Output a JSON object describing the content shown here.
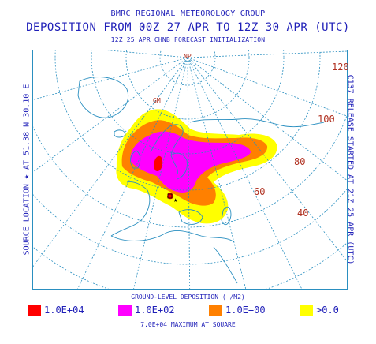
{
  "header": {
    "org": "BMRC REGIONAL METEOROLOGY GROUP",
    "title": "DEPOSITION FROM 00Z 27 APR TO 12Z 30 APR (UTC)",
    "subtitle": "12Z 25 APR CHNB FORECAST INITIALIZATION"
  },
  "side_labels": {
    "left": "SOURCE LOCATION ★ AT 51.38 N 30.10 E",
    "right": "C137 RELEASE STARTED AT 21Z 25 APR (UTC)"
  },
  "map": {
    "labels": {
      "north_pole": "NP",
      "greenwich": "GM",
      "lon_120": "120",
      "lon_100": "100",
      "lon_80": "80",
      "lon_60": "60",
      "lon_40": "40"
    },
    "colors": {
      "ocean": "#ffffff",
      "graticule": "#2a8fc0",
      "coast": "#2a8fc0",
      "level_1e4": "#ff0000",
      "level_1e2": "#ff00ff",
      "level_1e0": "#ff8000",
      "level_0": "#ffff00",
      "label": "#b03020"
    }
  },
  "legend": {
    "title": "GROUND-LEVEL DEPOSITION ( /M2)",
    "items": [
      {
        "label": "1.0E+04",
        "color": "#ff0000"
      },
      {
        "label": "1.0E+02",
        "color": "#ff00ff"
      },
      {
        "label": "1.0E+00",
        "color": "#ff8000"
      },
      {
        "label": ">0.0",
        "color": "#ffff00"
      }
    ]
  },
  "footer": "7.0E+04 MAXIMUM AT SQUARE"
}
